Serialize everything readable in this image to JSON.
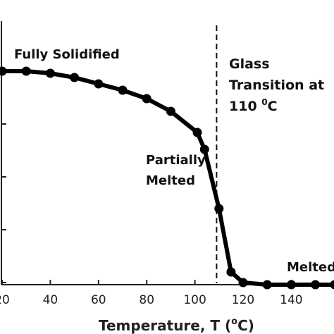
{
  "chart_data": {
    "type": "line",
    "xlabel": "Temperature, T (",
    "xlabel_superscript": "o",
    "xlabel_suffix": "C)",
    "xlim": [
      20,
      160
    ],
    "ylim": [
      0,
      1.05
    ],
    "x_ticks": [
      20,
      40,
      60,
      80,
      100,
      120,
      140
    ],
    "x_tick_labels": [
      "20",
      "40",
      "60",
      "80",
      "100",
      "120",
      "140"
    ],
    "y_gridlines": [
      0,
      0.25,
      0.5,
      0.75,
      1.0
    ],
    "series": [
      {
        "color": "#000000",
        "x": [
          20,
          30,
          40,
          50,
          60,
          70,
          80,
          90,
          101,
          104,
          110,
          115,
          120,
          130,
          140,
          150,
          158
        ],
        "y": [
          1.0,
          1.0,
          0.99,
          0.97,
          0.94,
          0.91,
          0.87,
          0.81,
          0.71,
          0.63,
          0.35,
          0.05,
          0.0,
          -0.01,
          -0.01,
          -0.01,
          -0.01
        ]
      }
    ],
    "reference_line": {
      "x": 109,
      "style": "dashed"
    },
    "annotations": {
      "fully_solidified": "Fully Solidified",
      "partially_line1": "Partially",
      "partially_line2": "Melted",
      "glass_line1": "Glass",
      "glass_line2": "Transition at",
      "glass_line3_main": "110 ",
      "glass_line3_sup": "0",
      "glass_line3_end": "C",
      "melted": "Melted"
    }
  }
}
